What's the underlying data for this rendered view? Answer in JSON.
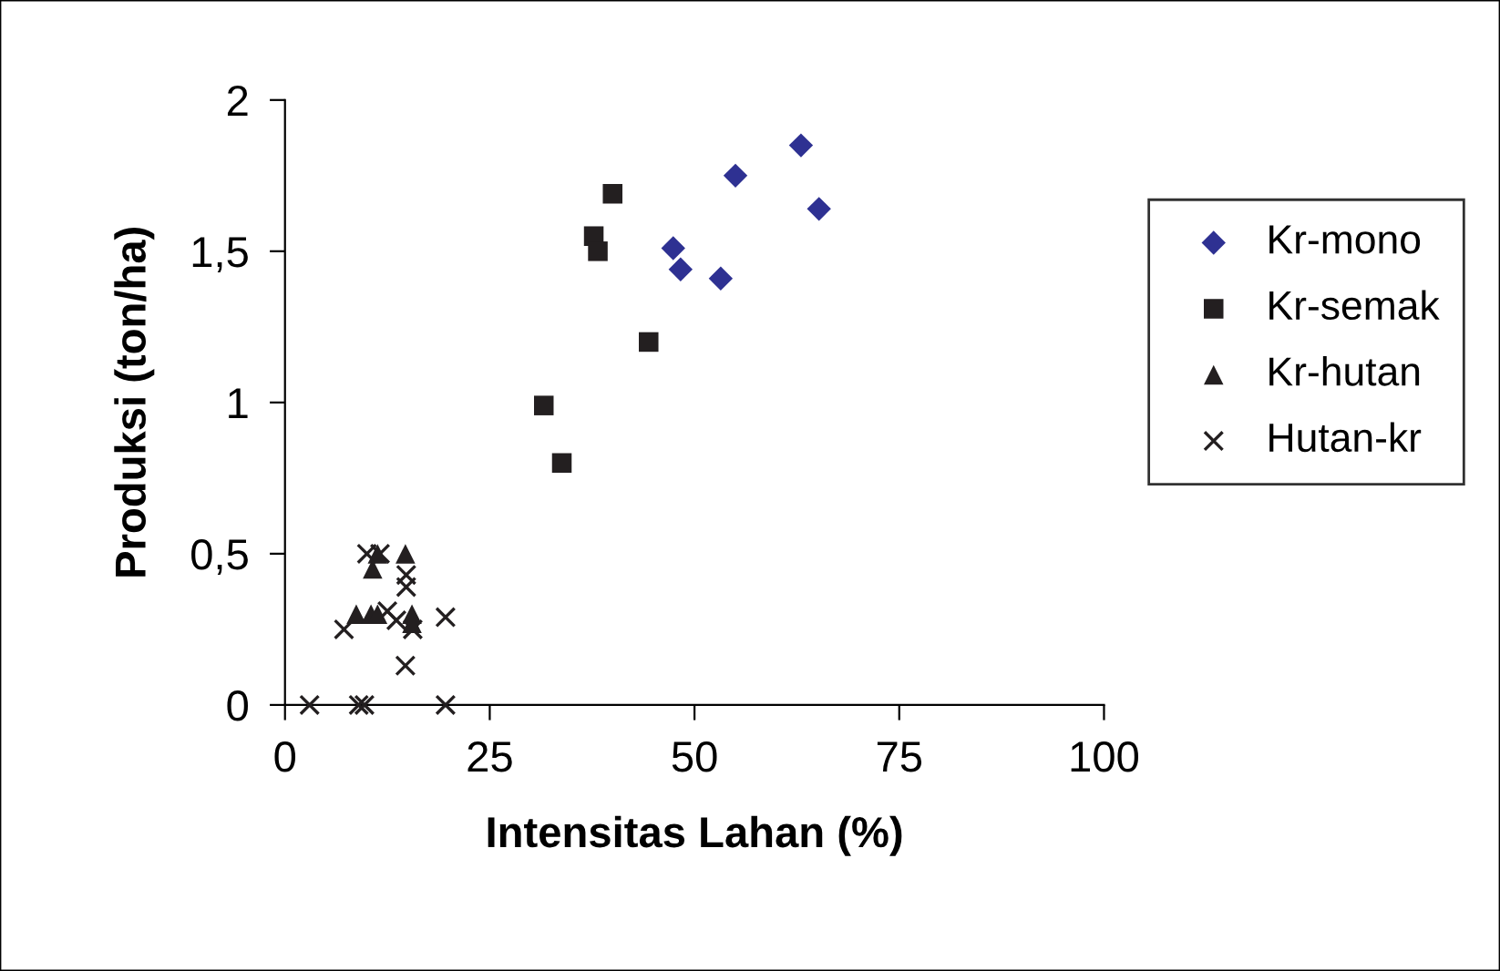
{
  "chart_data": {
    "type": "scatter",
    "xlabel": "Intensitas Lahan (%)",
    "ylabel": "Produksi (ton/ha)",
    "xlim": [
      0,
      100
    ],
    "xticks": [
      0,
      25,
      50,
      75,
      100
    ],
    "ylim": [
      0,
      2
    ],
    "yticks": [
      {
        "value": 0,
        "label": "0"
      },
      {
        "value": 0.5,
        "label": "0,5"
      },
      {
        "value": 1,
        "label": "1"
      },
      {
        "value": 1.5,
        "label": "1,5"
      },
      {
        "value": 2,
        "label": "2"
      }
    ],
    "grid": false,
    "legend": "right",
    "series": [
      {
        "name": "Kr-mono",
        "color": "#2e3192",
        "marker": "diamond",
        "x": [
          47.4,
          48.3,
          53.2,
          55.0,
          63.0,
          65.2
        ],
        "values": [
          1.51,
          1.44,
          1.41,
          1.75,
          1.85,
          1.64
        ]
      },
      {
        "name": "Kr-semak",
        "color": "#231f20",
        "marker": "square",
        "x": [
          40.0,
          37.7,
          38.2,
          44.4,
          31.6,
          33.8
        ],
        "values": [
          1.69,
          1.55,
          1.5,
          1.2,
          0.99,
          0.8
        ]
      },
      {
        "name": "Kr-hutan",
        "color": "#231f20",
        "marker": "triangle",
        "x": [
          11.3,
          14.7,
          10.7,
          8.7,
          10.5,
          11.3,
          15.5,
          15.5
        ],
        "values": [
          0.5,
          0.5,
          0.45,
          0.3,
          0.3,
          0.3,
          0.3,
          0.27
        ]
      },
      {
        "name": "Hutan-kr",
        "color": "#231f20",
        "marker": "cross",
        "x": [
          10.0,
          11.6,
          14.8,
          14.8,
          7.2,
          19.6,
          13.6,
          12.5,
          15.6,
          14.7,
          3.0,
          9.0,
          9.7,
          19.6
        ],
        "values": [
          0.5,
          0.5,
          0.43,
          0.39,
          0.25,
          0.29,
          0.28,
          0.31,
          0.25,
          0.13,
          0,
          0,
          0,
          0
        ]
      }
    ]
  }
}
